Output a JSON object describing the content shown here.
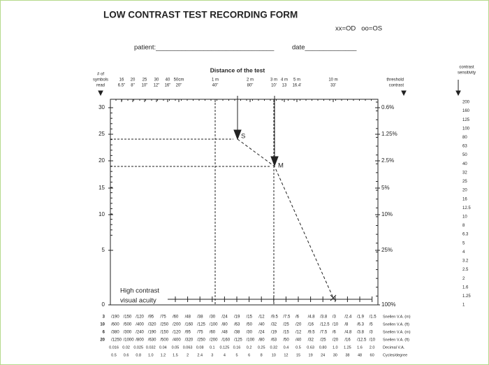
{
  "header": {
    "title": "LOW CONTRAST TEST RECORDING FORM",
    "legend": "xx=OD   oo=OS",
    "patient": "patient:________________________________",
    "date": "date______________"
  },
  "distance": {
    "title": "Distance of the test",
    "columns": [
      [
        "16",
        "6.5\""
      ],
      [
        "20",
        "8\""
      ],
      [
        "25",
        "10\""
      ],
      [
        "30",
        "12\""
      ],
      [
        "40",
        "16\""
      ],
      [
        "50cm",
        "20\""
      ],
      [
        "1 m",
        "40\""
      ],
      [
        "2 m",
        "80\""
      ],
      [
        "3 m",
        "10'"
      ],
      [
        "4 m",
        "13"
      ],
      [
        "5 m",
        "16.4'"
      ],
      [
        "10 m",
        "33'"
      ]
    ]
  },
  "left_axis": {
    "title": [
      "# of",
      "symbols",
      "read"
    ],
    "labels": [
      "30",
      "25",
      "20",
      "15",
      "10",
      "5",
      "0"
    ]
  },
  "threshold": {
    "title": [
      "threshold",
      "contrast"
    ],
    "labels": [
      "0.6%",
      "1.25%",
      "2.5%",
      "5%",
      "10%",
      "25%",
      "100%"
    ]
  },
  "sensitivity": {
    "title": [
      "contrast",
      "sensitivity"
    ],
    "labels": [
      "200",
      "160",
      "125",
      "100",
      "80",
      "63",
      "50",
      "40",
      "32",
      "25",
      "20",
      "16",
      "12.5",
      "10",
      "8",
      "6.3",
      "5",
      "4",
      "3.2",
      "2.5",
      "2",
      "1.6",
      "1.25",
      "1"
    ]
  },
  "marks": {
    "s": "S",
    "m": "M"
  },
  "high_contrast": [
    "High contrast",
    "visual acuity"
  ],
  "table": {
    "rows": [
      {
        "prefix": "3",
        "label": "Snellen V.A. (m)",
        "values": [
          "/190",
          "/150",
          "/120",
          "/95",
          "/75",
          "/60",
          "/48",
          "/38",
          "/30",
          "/24",
          "/19",
          "/15",
          "/12",
          "/9.5",
          "/7.5",
          "/6",
          "/4.8",
          "/3.8",
          "/3",
          "/2.4",
          "/1.9",
          "/1.5"
        ]
      },
      {
        "prefix": "10",
        "label": "Snellen V.A. (ft)",
        "values": [
          "/600",
          "/500",
          "/400",
          "/320",
          "/250",
          "/200",
          "/160",
          "/125",
          "/100",
          "/80",
          "/63",
          "/50",
          "/40",
          "/32",
          "/25",
          "/20",
          "/16",
          "/12.5",
          "/10",
          "/8",
          "/6.3",
          "/5"
        ]
      },
      {
        "prefix": "6",
        "label": "Snellen V.A. (m)",
        "values": [
          "/380",
          "/300",
          "/240",
          "/190",
          "/150",
          "/120",
          "/95",
          "/75",
          "/60",
          "/48",
          "/38",
          "/30",
          "/24",
          "/19",
          "/15",
          "/12",
          "/9.5",
          "/7.5",
          "/6",
          "/4.8",
          "/3.8",
          "/3"
        ]
      },
      {
        "prefix": "20",
        "label": "Snellen V.A. (ft)",
        "values": [
          "/1250",
          "/1000",
          "/800",
          "/630",
          "/500",
          "/400",
          "/320",
          "/250",
          "/200",
          "/160",
          "/125",
          "/100",
          "/80",
          "/63",
          "/50",
          "/40",
          "/32",
          "/25",
          "/20",
          "/16",
          "/12.5",
          "/10"
        ]
      },
      {
        "label": "Decimal V.A.",
        "values": [
          "0.016",
          "0.02",
          "0.025",
          "0.032",
          "0.04",
          "0.05",
          "0.063",
          "0.08",
          "0.1",
          "0.125",
          "0.16",
          "0.2",
          "0.25",
          "0.32",
          "0.4",
          "0.5",
          "0.63",
          "0.80",
          "1.0",
          "1.25",
          "1.6",
          "2.0"
        ]
      },
      {
        "label": "Cycles/degree",
        "values": [
          "0.5",
          "0.6",
          "0.8",
          "1.0",
          "1.2",
          "1.5",
          "2",
          "2.4",
          "3",
          "4",
          "5",
          "6",
          "8",
          "10",
          "12",
          "15",
          "19",
          "24",
          "30",
          "38",
          "48",
          "60"
        ]
      }
    ]
  }
}
